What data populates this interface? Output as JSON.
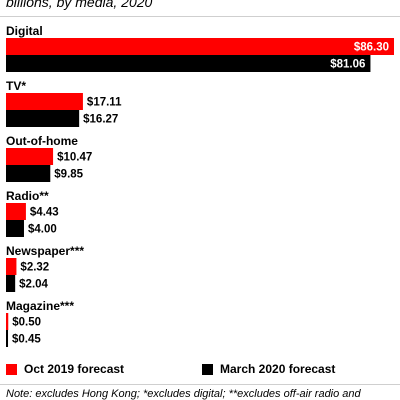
{
  "subtitle": "billions, by media, 2020",
  "legend": {
    "items": [
      {
        "label": "Oct 2019 forecast",
        "color": "#ff0000"
      },
      {
        "label": "March 2020 forecast",
        "color": "#000000"
      }
    ]
  },
  "note": "Note: excludes Hong Kong; *excludes digital; **excludes off-air radio and",
  "chart_data": {
    "type": "bar",
    "orientation": "horizontal",
    "categories": [
      "Digital",
      "TV*",
      "Out-of-home",
      "Radio**",
      "Newspaper***",
      "Magazine***"
    ],
    "series": [
      {
        "name": "Oct 2019 forecast",
        "color": "#ff0000",
        "values": [
          86.3,
          17.11,
          10.47,
          4.43,
          2.32,
          0.5
        ]
      },
      {
        "name": "March 2020 forecast",
        "color": "#000000",
        "values": [
          81.06,
          16.27,
          9.85,
          4.0,
          2.04,
          0.45
        ]
      }
    ],
    "value_prefix": "$",
    "xlim": [
      0,
      86.3
    ],
    "legend_position": "bottom",
    "grid": false
  }
}
